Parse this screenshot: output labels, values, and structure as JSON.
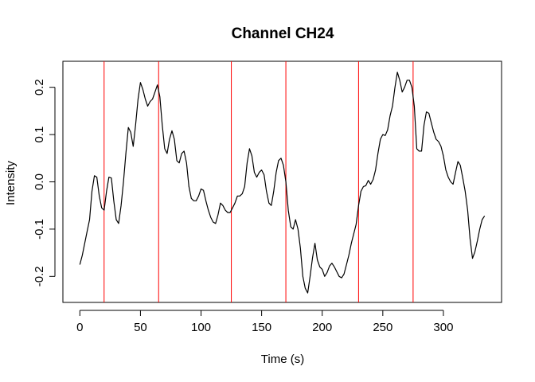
{
  "chart_data": {
    "type": "line",
    "title": "Channel CH24",
    "xlabel": "Time (s)",
    "ylabel": "Intensity",
    "xlim": [
      -14,
      348
    ],
    "ylim": [
      -0.255,
      0.255
    ],
    "x_ticks": [
      0,
      50,
      100,
      150,
      200,
      250,
      300
    ],
    "x_tick_labels": [
      "0",
      "50",
      "100",
      "150",
      "200",
      "250",
      "300"
    ],
    "y_ticks": [
      -0.2,
      -0.1,
      0.0,
      0.1,
      0.2
    ],
    "y_tick_labels": [
      "-0.2",
      "-0.1",
      "0.0",
      "0.1",
      "0.2"
    ],
    "grid": false,
    "series": [
      {
        "color": "#000000",
        "x": [
          0,
          2,
          4,
          6,
          8,
          10,
          12,
          14,
          16,
          18,
          20,
          22,
          24,
          26,
          28,
          30,
          32,
          34,
          36,
          38,
          40,
          42,
          44,
          46,
          48,
          50,
          52,
          54,
          56,
          58,
          60,
          62,
          64,
          66,
          68,
          70,
          72,
          74,
          76,
          78,
          80,
          82,
          84,
          86,
          88,
          90,
          92,
          94,
          96,
          98,
          100,
          102,
          104,
          106,
          108,
          110,
          112,
          114,
          116,
          118,
          120,
          122,
          124,
          126,
          128,
          130,
          132,
          134,
          136,
          138,
          140,
          142,
          144,
          146,
          148,
          150,
          152,
          154,
          156,
          158,
          160,
          162,
          164,
          166,
          168,
          170,
          172,
          174,
          176,
          178,
          180,
          182,
          184,
          186,
          188,
          190,
          192,
          194,
          196,
          198,
          200,
          202,
          204,
          206,
          208,
          210,
          212,
          214,
          216,
          218,
          220,
          222,
          224,
          226,
          228,
          230,
          232,
          234,
          236,
          238,
          240,
          242,
          244,
          246,
          248,
          250,
          252,
          254,
          256,
          258,
          260,
          262,
          264,
          266,
          268,
          270,
          272,
          274,
          276,
          278,
          280,
          282,
          284,
          286,
          288,
          290,
          292,
          294,
          296,
          298,
          300,
          302,
          304,
          306,
          308,
          310,
          312,
          314,
          316,
          318,
          320,
          322,
          324,
          326,
          328,
          330,
          332,
          334
        ],
        "values": [
          -0.175,
          -0.155,
          -0.13,
          -0.105,
          -0.08,
          -0.02,
          0.013,
          0.01,
          -0.03,
          -0.055,
          -0.06,
          -0.02,
          0.01,
          0.008,
          -0.04,
          -0.08,
          -0.088,
          -0.05,
          0.0,
          0.06,
          0.115,
          0.105,
          0.075,
          0.12,
          0.175,
          0.21,
          0.195,
          0.175,
          0.16,
          0.17,
          0.175,
          0.19,
          0.205,
          0.18,
          0.12,
          0.07,
          0.06,
          0.09,
          0.108,
          0.09,
          0.045,
          0.04,
          0.06,
          0.065,
          0.04,
          -0.01,
          -0.035,
          -0.04,
          -0.04,
          -0.03,
          -0.015,
          -0.018,
          -0.04,
          -0.06,
          -0.075,
          -0.085,
          -0.088,
          -0.07,
          -0.045,
          -0.05,
          -0.06,
          -0.065,
          -0.065,
          -0.055,
          -0.045,
          -0.03,
          -0.03,
          -0.025,
          -0.01,
          0.04,
          0.07,
          0.055,
          0.02,
          0.01,
          0.02,
          0.025,
          0.015,
          -0.02,
          -0.045,
          -0.05,
          -0.02,
          0.02,
          0.045,
          0.05,
          0.035,
          0.0,
          -0.06,
          -0.095,
          -0.1,
          -0.08,
          -0.1,
          -0.14,
          -0.2,
          -0.225,
          -0.235,
          -0.2,
          -0.16,
          -0.13,
          -0.165,
          -0.18,
          -0.185,
          -0.2,
          -0.192,
          -0.178,
          -0.172,
          -0.18,
          -0.19,
          -0.2,
          -0.203,
          -0.195,
          -0.175,
          -0.155,
          -0.13,
          -0.11,
          -0.09,
          -0.05,
          -0.02,
          -0.01,
          -0.008,
          0.003,
          -0.005,
          0.005,
          0.025,
          0.06,
          0.09,
          0.1,
          0.098,
          0.11,
          0.14,
          0.16,
          0.2,
          0.232,
          0.215,
          0.19,
          0.2,
          0.215,
          0.215,
          0.2,
          0.16,
          0.07,
          0.065,
          0.065,
          0.12,
          0.148,
          0.145,
          0.125,
          0.105,
          0.09,
          0.085,
          0.075,
          0.055,
          0.025,
          0.01,
          0.0,
          -0.005,
          0.02,
          0.043,
          0.035,
          0.008,
          -0.02,
          -0.06,
          -0.12,
          -0.162,
          -0.148,
          -0.125,
          -0.1,
          -0.08,
          -0.072
        ]
      }
    ],
    "vertical_lines": {
      "color": "#ff0000",
      "x": [
        20,
        65,
        125,
        170,
        230,
        275
      ]
    }
  }
}
